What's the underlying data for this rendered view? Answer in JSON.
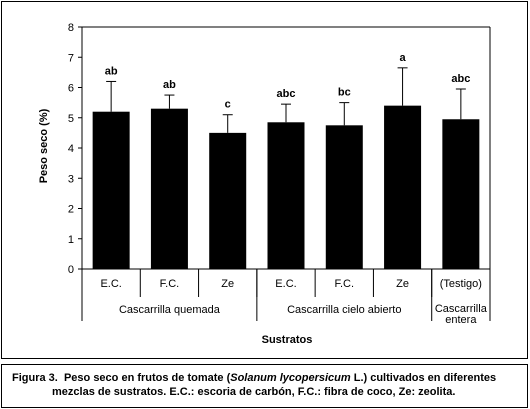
{
  "chart_data": {
    "type": "bar",
    "categories": [
      "E.C.",
      "F.C.",
      "Ze",
      "E.C.",
      "F.C.",
      "Ze",
      "(Testigo)"
    ],
    "groups": [
      {
        "label": "Cascarrilla quemada",
        "members": [
          0,
          1,
          2
        ]
      },
      {
        "label": "Cascarrilla cielo abierto",
        "members": [
          3,
          4,
          5
        ]
      },
      {
        "label": "Cascarrilla entera",
        "members": [
          6
        ]
      }
    ],
    "values": [
      5.2,
      5.3,
      4.5,
      4.85,
      4.75,
      5.4,
      4.95
    ],
    "error_upper": [
      6.2,
      5.75,
      5.1,
      5.45,
      5.5,
      6.65,
      5.95
    ],
    "data_labels": [
      "ab",
      "ab",
      "c",
      "abc",
      "bc",
      "a",
      "abc"
    ],
    "yticks": [
      "0",
      "1",
      "2",
      "3",
      "4",
      "5",
      "6",
      "7",
      "8"
    ],
    "ylim": [
      0,
      8
    ],
    "xlabel": "Sustratos",
    "ylabel": "Peso seco (%)",
    "bar_color": "#000000"
  },
  "caption": {
    "prefix": "Figura 3.",
    "line1_before": "Peso seco en frutos de tomate (",
    "line1_italic": "Solanum lycopersicum",
    "line1_after": " L.) cultivados en diferentes",
    "line2": "mezclas de sustratos. E.C.: escoria de carbón, F.C.: fibra de coco, Ze: zeolita."
  }
}
